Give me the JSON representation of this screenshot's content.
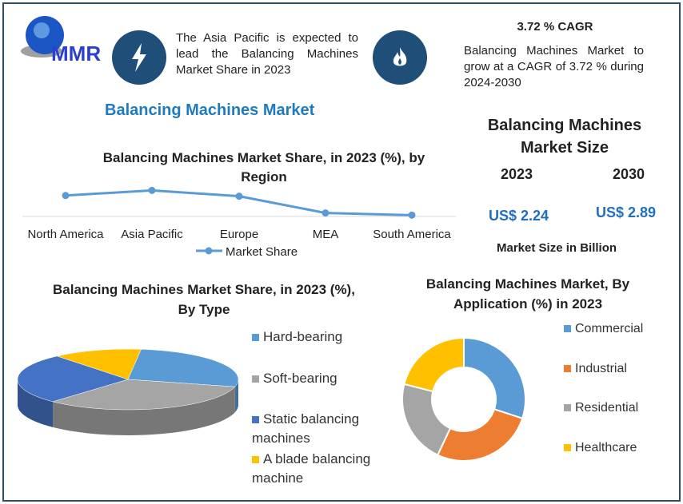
{
  "logo": {
    "text": "MMR"
  },
  "highlight1": {
    "icon": "lightning-icon",
    "text": "The Asia Pacific is expected to lead the Balancing Machines Market Share in 2023"
  },
  "highlight2": {
    "icon": "flame-icon",
    "cagr_title": "3.72 % CAGR",
    "text": "Balancing Machines Market to grow at a CAGR of 3.72 % during 2024-2030"
  },
  "main_title": "Balancing Machines Market",
  "market_size": {
    "title": "Balancing Machines Market Size",
    "year1": "2023",
    "year2": "2030",
    "value1": "US$ 2.24",
    "value2": "US$ 2.89",
    "unit": "Market Size in Billion"
  },
  "colors": {
    "frame": "#2e4d6b",
    "accent": "#1f4e79",
    "title_blue": "#1f7bc1",
    "value_blue": "#1f6fc1",
    "series": [
      "#5b9bd5",
      "#a5a5a5",
      "#4472c4",
      "#ffc000",
      "#ed7d31"
    ]
  },
  "chart_data": [
    {
      "type": "line",
      "title": "Balancing Machines Market Share, in 2023 (%), by Region",
      "categories": [
        "North America",
        "Asia Pacific",
        "Europe",
        "MEA",
        "South America"
      ],
      "series": [
        {
          "name": "Market Share",
          "values": [
            31,
            38,
            30,
            7,
            4
          ]
        }
      ],
      "ylim": [
        0,
        45
      ],
      "legend": "bottom",
      "grid": false
    },
    {
      "type": "pie",
      "style": "3d",
      "title": "Balancing Machines Market Share, in 2023 (%), By Type",
      "categories": [
        "Hard-bearing",
        "Soft-bearing",
        "Static balancing machines",
        "A blade balancing machine"
      ],
      "values": [
        27,
        33,
        27,
        13
      ],
      "colors": [
        "#5b9bd5",
        "#a5a5a5",
        "#4472c4",
        "#ffc000"
      ],
      "legend": "right"
    },
    {
      "type": "pie",
      "style": "donut",
      "title": "Balancing Machines Market, By Application (%) in 2023",
      "categories": [
        "Commercial",
        "Industrial",
        "Residential",
        "Healthcare"
      ],
      "values": [
        30,
        27,
        22,
        21
      ],
      "colors": [
        "#5b9bd5",
        "#ed7d31",
        "#a5a5a5",
        "#ffc000"
      ],
      "legend": "right"
    }
  ]
}
